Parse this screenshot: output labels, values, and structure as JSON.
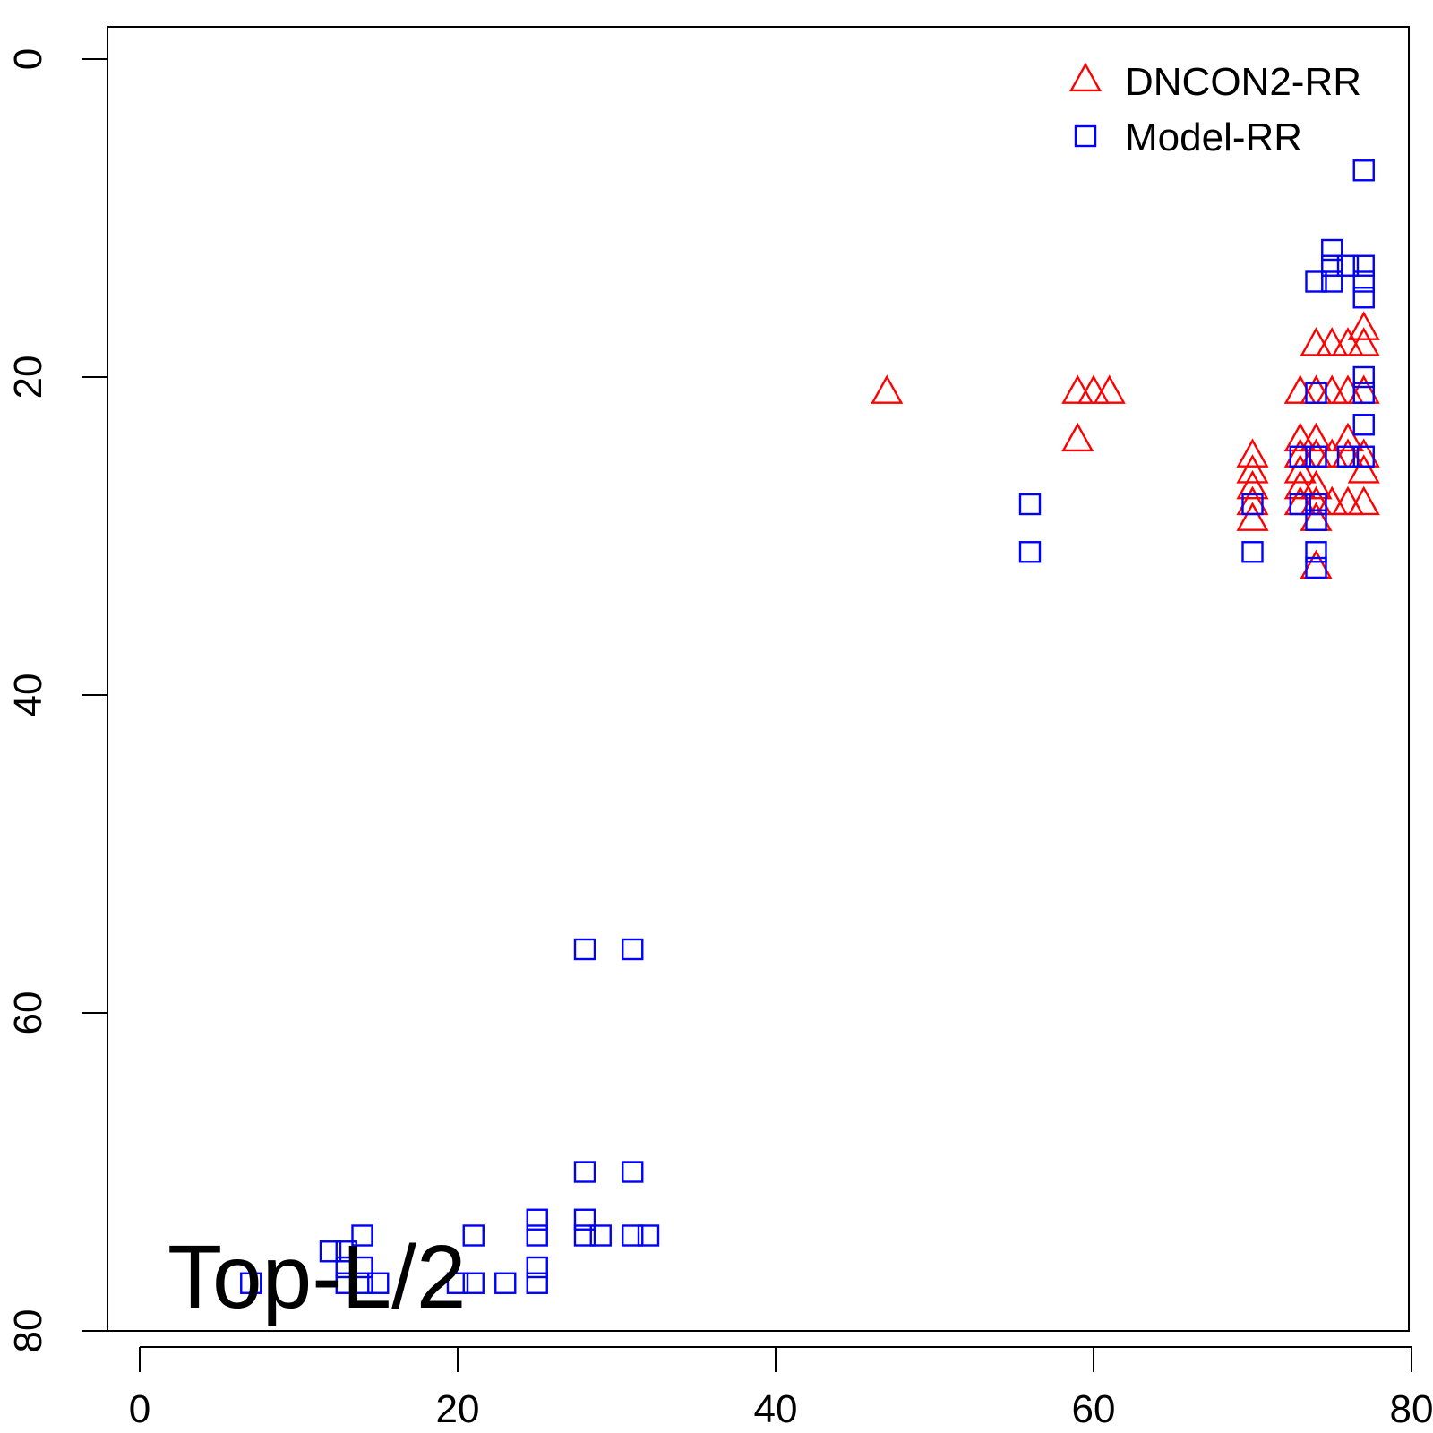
{
  "chart_data": {
    "type": "scatter",
    "title": "",
    "xlabel": "",
    "ylabel": "",
    "xlim": [
      -2,
      80
    ],
    "ylim": [
      80,
      -2
    ],
    "y_reversed": true,
    "x_ticks": [
      0,
      20,
      40,
      60,
      80
    ],
    "y_ticks": [
      0,
      20,
      40,
      60,
      80
    ],
    "x_tick_labels": [
      "0",
      "20",
      "40",
      "60",
      "80"
    ],
    "y_tick_labels": [
      "0",
      "20",
      "40",
      "60",
      "80"
    ],
    "grid": false,
    "legend_position": "top-right",
    "annotation": "Top-L/2",
    "series": [
      {
        "name": "DNCON2-RR",
        "marker": "triangle",
        "color": "#ff0000",
        "points": [
          [
            47,
            21
          ],
          [
            59,
            21
          ],
          [
            60,
            21
          ],
          [
            61,
            21
          ],
          [
            59,
            24
          ],
          [
            70,
            25
          ],
          [
            70,
            26
          ],
          [
            70,
            27
          ],
          [
            70,
            28
          ],
          [
            70,
            29
          ],
          [
            73,
            21
          ],
          [
            73,
            24
          ],
          [
            73,
            25
          ],
          [
            73,
            26
          ],
          [
            73,
            27
          ],
          [
            73,
            28
          ],
          [
            74,
            18
          ],
          [
            74,
            21
          ],
          [
            74,
            24
          ],
          [
            74,
            25
          ],
          [
            74,
            27
          ],
          [
            74,
            28
          ],
          [
            74,
            29
          ],
          [
            74,
            32
          ],
          [
            75,
            18
          ],
          [
            75,
            21
          ],
          [
            75,
            25
          ],
          [
            75,
            28
          ],
          [
            76,
            18
          ],
          [
            76,
            21
          ],
          [
            76,
            24
          ],
          [
            76,
            25
          ],
          [
            76,
            28
          ],
          [
            77,
            17
          ],
          [
            77,
            18
          ],
          [
            77,
            21
          ],
          [
            77,
            25
          ],
          [
            77,
            26
          ],
          [
            77,
            28
          ]
        ]
      },
      {
        "name": "Model-RR",
        "marker": "square",
        "color": "#0000ff",
        "points": [
          [
            77,
            7
          ],
          [
            75,
            12
          ],
          [
            75,
            13
          ],
          [
            76,
            13
          ],
          [
            77,
            13
          ],
          [
            74,
            14
          ],
          [
            75,
            14
          ],
          [
            77,
            14
          ],
          [
            77,
            15
          ],
          [
            77,
            20
          ],
          [
            74,
            21
          ],
          [
            77,
            21
          ],
          [
            77,
            23
          ],
          [
            73,
            25
          ],
          [
            74,
            25
          ],
          [
            76,
            25
          ],
          [
            77,
            25
          ],
          [
            56,
            28
          ],
          [
            70,
            28
          ],
          [
            73,
            28
          ],
          [
            74,
            28
          ],
          [
            74,
            29
          ],
          [
            56,
            31
          ],
          [
            70,
            31
          ],
          [
            74,
            31
          ],
          [
            74,
            32
          ],
          [
            28,
            56
          ],
          [
            31,
            56
          ],
          [
            28,
            70
          ],
          [
            31,
            70
          ],
          [
            25,
            73
          ],
          [
            28,
            73
          ],
          [
            14,
            74
          ],
          [
            21,
            74
          ],
          [
            25,
            74
          ],
          [
            28,
            74
          ],
          [
            29,
            74
          ],
          [
            31,
            74
          ],
          [
            32,
            74
          ],
          [
            12,
            75
          ],
          [
            13,
            75
          ],
          [
            13,
            76
          ],
          [
            14,
            76
          ],
          [
            25,
            76
          ],
          [
            7,
            77
          ],
          [
            13,
            77
          ],
          [
            14,
            77
          ],
          [
            15,
            77
          ],
          [
            20,
            77
          ],
          [
            21,
            77
          ],
          [
            23,
            77
          ],
          [
            25,
            77
          ]
        ]
      }
    ]
  }
}
